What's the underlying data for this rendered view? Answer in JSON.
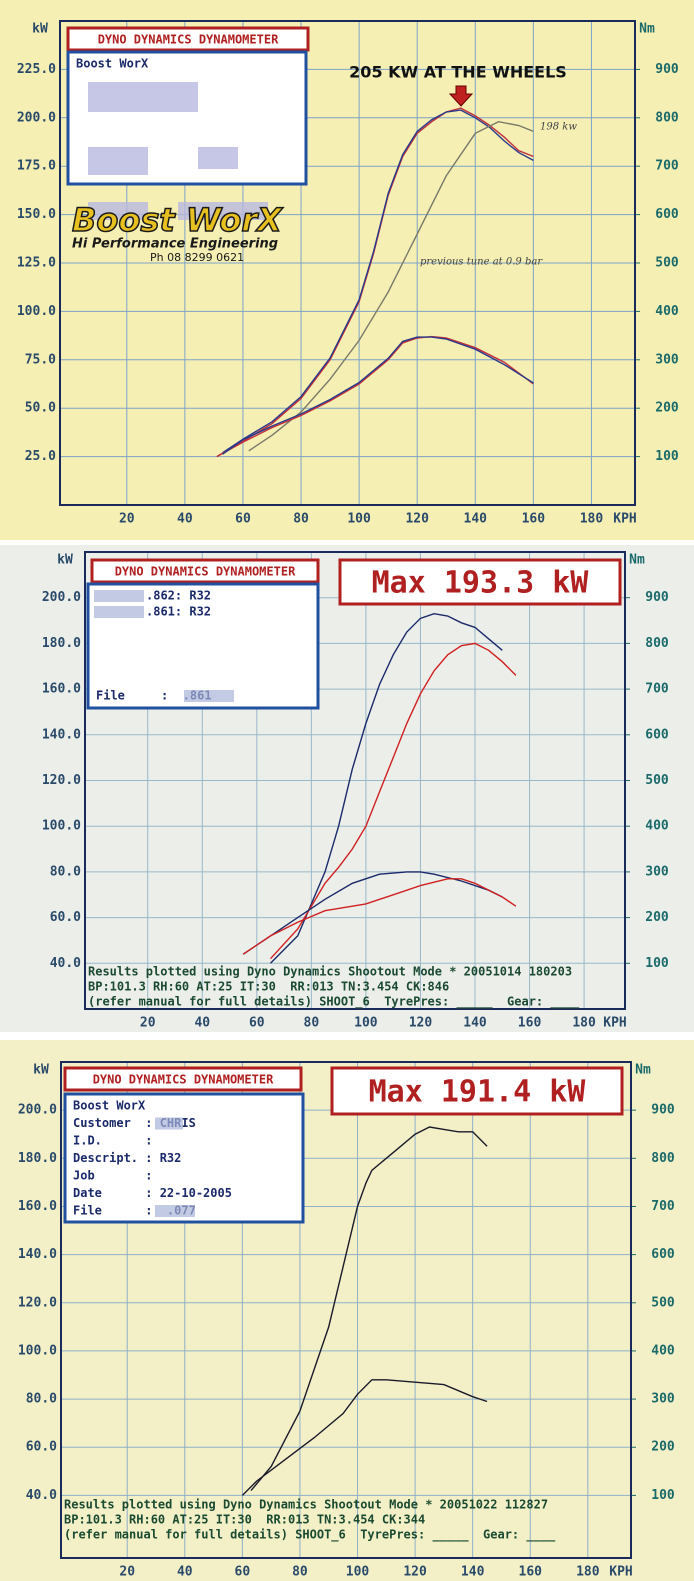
{
  "chart_data": [
    {
      "type": "line",
      "header": "DYNO DYNAMICS DYNAMOMETER",
      "y_label": "kW",
      "y2_label": "Nm",
      "x_label": "KPH",
      "info": [
        "Boost WorX"
      ],
      "logo": [
        "Boost WorX",
        "Hi Performance Engineering",
        "Ph 08 8299 0621"
      ],
      "annotation": "205 KW AT THE WHEELS",
      "notes": [
        "198 kw",
        "previous tune at 0.9 bar"
      ],
      "xlim": [
        -3,
        195
      ],
      "xticks": [
        20,
        40,
        60,
        80,
        100,
        120,
        140,
        160,
        180
      ],
      "ylim": [
        0,
        250
      ],
      "yticks": [
        {
          "value": 25,
          "label": "25.0"
        },
        {
          "value": 50,
          "label": "50.0"
        },
        {
          "value": 75,
          "label": "75.0"
        },
        {
          "value": 100,
          "label": "100.0"
        },
        {
          "value": 125,
          "label": "125.0"
        },
        {
          "value": 150,
          "label": "150.0"
        },
        {
          "value": 175,
          "label": "175.0"
        },
        {
          "value": 200,
          "label": "200.0"
        },
        {
          "value": 225,
          "label": "225.0"
        }
      ],
      "y2lim": [
        0,
        1000
      ],
      "y2ticks": [
        100,
        200,
        300,
        400,
        500,
        600,
        700,
        800,
        900
      ],
      "series": [
        {
          "color": "#c0303a",
          "x": [
            51,
            60,
            70,
            80,
            90,
            100,
            105,
            110,
            115,
            120,
            125,
            130,
            135,
            140,
            145,
            150,
            155,
            160
          ],
          "values": [
            25,
            33,
            42,
            55,
            75,
            105,
            130,
            160,
            180,
            192,
            198,
            203,
            205,
            201,
            196,
            190,
            183,
            180
          ]
        },
        {
          "color": "#2a3a8a",
          "x": [
            53,
            60,
            70,
            80,
            90,
            100,
            105,
            110,
            115,
            120,
            125,
            130,
            135,
            140,
            145,
            150,
            155,
            160
          ],
          "values": [
            27,
            34,
            43,
            56,
            76,
            106,
            131,
            161,
            181,
            193,
            199,
            203,
            204,
            200,
            195,
            188,
            182,
            178
          ]
        },
        {
          "color": "#7a7a6a",
          "x": [
            62,
            70,
            80,
            90,
            100,
            110,
            120,
            130,
            140,
            148,
            155,
            160
          ],
          "values": [
            28,
            36,
            48,
            65,
            85,
            110,
            140,
            170,
            192,
            198,
            196,
            193
          ]
        },
        {
          "color": "#c0303a",
          "axis": "y2",
          "x": [
            51,
            60,
            70,
            80,
            90,
            100,
            110,
            115,
            120,
            125,
            130,
            140,
            150,
            160
          ],
          "values": [
            100,
            130,
            160,
            185,
            215,
            250,
            300,
            335,
            345,
            348,
            345,
            325,
            295,
            250
          ]
        },
        {
          "color": "#2a3a8a",
          "axis": "y2",
          "x": [
            53,
            60,
            70,
            80,
            90,
            100,
            110,
            115,
            120,
            125,
            130,
            140,
            150,
            160
          ],
          "values": [
            105,
            135,
            163,
            188,
            218,
            253,
            303,
            338,
            347,
            347,
            343,
            322,
            290,
            252
          ]
        }
      ]
    },
    {
      "type": "line",
      "header": "DYNO DYNAMICS DYNAMOMETER",
      "title": "Max 193.3 kW",
      "y_label": "kW",
      "y2_label": "Nm",
      "x_label": "KPH",
      "info": [
        ".862: R32",
        ".861: R32",
        "File     :  .861"
      ],
      "footer": [
        "Results plotted using Dyno Dynamics Shootout Mode * 20051014 180203",
        "BP:101.3 RH:60 AT:25 IT:30  RR:013 TN:3.454 CK:846",
        "(refer manual for full details) SHOOT_6  TyrePres: _____  Gear: ____"
      ],
      "xlim": [
        -3,
        195
      ],
      "xticks": [
        20,
        40,
        60,
        80,
        100,
        120,
        140,
        160,
        180
      ],
      "ylim": [
        20,
        220
      ],
      "yticks": [
        {
          "value": 40,
          "label": "40.0"
        },
        {
          "value": 60,
          "label": "60.0"
        },
        {
          "value": 80,
          "label": "80.0"
        },
        {
          "value": 100,
          "label": "100.0"
        },
        {
          "value": 120,
          "label": "120.0"
        },
        {
          "value": 140,
          "label": "140.0"
        },
        {
          "value": 160,
          "label": "160.0"
        },
        {
          "value": 180,
          "label": "180.0"
        },
        {
          "value": 200,
          "label": "200.0"
        }
      ],
      "y2lim": [
        0,
        1000
      ],
      "y2ticks": [
        100,
        200,
        300,
        400,
        500,
        600,
        700,
        800,
        900
      ],
      "series": [
        {
          "color": "#1a2a6a",
          "x": [
            65,
            75,
            85,
            90,
            95,
            100,
            105,
            110,
            115,
            120,
            125,
            130,
            135,
            140,
            145,
            150
          ],
          "values": [
            40,
            52,
            80,
            100,
            125,
            145,
            162,
            175,
            185,
            191,
            193,
            192,
            189,
            187,
            182,
            177
          ]
        },
        {
          "color": "#d02020",
          "x": [
            65,
            75,
            80,
            85,
            90,
            95,
            100,
            105,
            110,
            115,
            120,
            125,
            130,
            135,
            140,
            145,
            150,
            155
          ],
          "values": [
            42,
            55,
            65,
            75,
            82,
            90,
            100,
            115,
            130,
            145,
            158,
            168,
            175,
            179,
            180,
            177,
            172,
            166
          ]
        },
        {
          "color": "#1a2a6a",
          "axis": "y2",
          "x": [
            55,
            65,
            75,
            85,
            95,
            105,
            115,
            120,
            125,
            135,
            145,
            150
          ],
          "values": [
            120,
            160,
            200,
            240,
            275,
            295,
            300,
            300,
            295,
            280,
            260,
            245
          ]
        },
        {
          "color": "#d02020",
          "axis": "y2",
          "x": [
            55,
            65,
            75,
            85,
            95,
            100,
            110,
            120,
            130,
            135,
            140,
            150,
            155
          ],
          "values": [
            120,
            160,
            190,
            215,
            225,
            230,
            250,
            270,
            285,
            285,
            275,
            245,
            225
          ]
        }
      ]
    },
    {
      "type": "line",
      "header": "DYNO DYNAMICS DYNAMOMETER",
      "title": "Max 191.4 kW",
      "y_label": "kW",
      "y2_label": "Nm",
      "x_label": "KPH",
      "info": [
        "Boost WorX",
        "Customer  : CHRIS",
        "I.D.      :",
        "Descript. : R32",
        "Job       :",
        "Date      : 22-10-2005",
        "File      :  .077"
      ],
      "footer": [
        "Results plotted using Dyno Dynamics Shootout Mode * 20051022 112827",
        "BP:101.3 RH:60 AT:25 IT:30  RR:013 TN:3.454 CK:344",
        "(refer manual for full details) SHOOT_6  TyrePres: _____  Gear: ____"
      ],
      "xlim": [
        -3,
        195
      ],
      "xticks": [
        20,
        40,
        60,
        80,
        100,
        120,
        140,
        160,
        180
      ],
      "ylim": [
        14,
        220
      ],
      "yticks": [
        {
          "value": 40,
          "label": "40.0"
        },
        {
          "value": 60,
          "label": "60.0"
        },
        {
          "value": 80,
          "label": "80.0"
        },
        {
          "value": 100,
          "label": "100.0"
        },
        {
          "value": 120,
          "label": "120.0"
        },
        {
          "value": 140,
          "label": "140.0"
        },
        {
          "value": 160,
          "label": "160.0"
        },
        {
          "value": 180,
          "label": "180.0"
        },
        {
          "value": 200,
          "label": "200.0"
        }
      ],
      "y2lim": [
        -30,
        1000
      ],
      "y2ticks": [
        100,
        200,
        300,
        400,
        500,
        600,
        700,
        800,
        900
      ],
      "series": [
        {
          "color": "#1a1a2a",
          "x": [
            63,
            70,
            80,
            90,
            95,
            100,
            103,
            105,
            110,
            115,
            120,
            125,
            130,
            135,
            140,
            145
          ],
          "values": [
            42,
            52,
            75,
            110,
            135,
            160,
            170,
            175,
            180,
            185,
            190,
            193,
            192,
            191,
            191,
            185
          ]
        },
        {
          "color": "#1a1a2a",
          "axis": "y2",
          "x": [
            60,
            65,
            75,
            85,
            95,
            100,
            105,
            110,
            120,
            130,
            140,
            145
          ],
          "values": [
            100,
            130,
            175,
            220,
            270,
            310,
            340,
            340,
            335,
            330,
            305,
            295
          ]
        }
      ]
    }
  ]
}
